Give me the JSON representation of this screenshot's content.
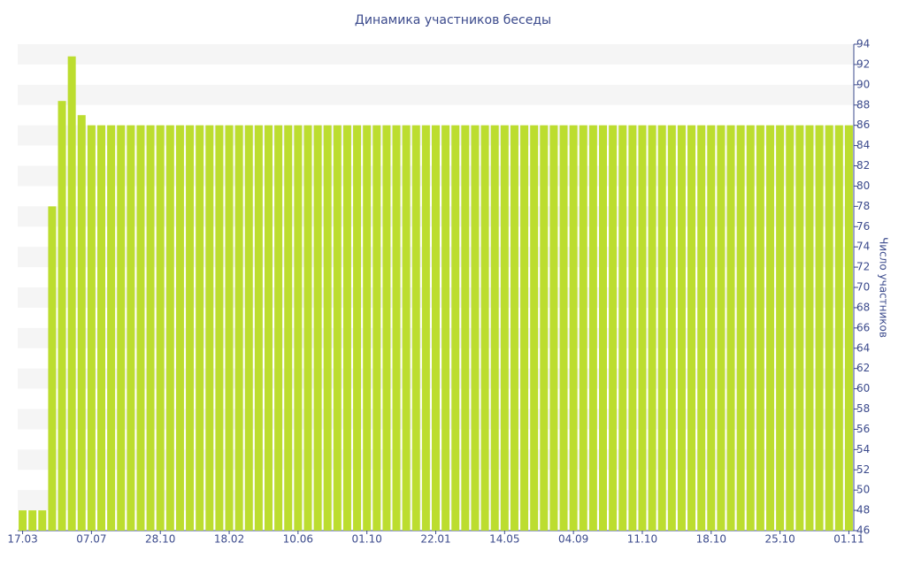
{
  "chart_data": {
    "type": "bar",
    "title": "Динамика участников беседы",
    "y_label": "Число участников",
    "categories": [
      "17.03",
      null,
      null,
      null,
      null,
      null,
      null,
      "07.07",
      null,
      null,
      null,
      null,
      null,
      null,
      "28.10",
      null,
      null,
      null,
      null,
      null,
      null,
      "18.02",
      null,
      null,
      null,
      null,
      null,
      null,
      "10.06",
      null,
      null,
      null,
      null,
      null,
      null,
      "01.10",
      null,
      null,
      null,
      null,
      null,
      null,
      "22.01",
      null,
      null,
      null,
      null,
      null,
      null,
      "14.05",
      null,
      null,
      null,
      null,
      null,
      null,
      "04.09",
      null,
      null,
      null,
      null,
      null,
      null,
      "11.10",
      null,
      null,
      null,
      null,
      null,
      null,
      "18.10",
      null,
      null,
      null,
      null,
      null,
      null,
      "25.10",
      null,
      null,
      null,
      null,
      null,
      null,
      "01.11"
    ],
    "values": [
      48,
      48,
      48,
      78,
      88.4,
      92.8,
      87,
      86,
      86,
      86,
      86,
      86,
      86,
      86,
      86,
      86,
      86,
      86,
      86,
      86,
      86,
      86,
      86,
      86,
      86,
      86,
      86,
      86,
      86,
      86,
      86,
      86,
      86,
      86,
      86,
      86,
      86,
      86,
      86,
      86,
      86,
      86,
      86,
      86,
      86,
      86,
      86,
      86,
      86,
      86,
      86,
      86,
      86,
      86,
      86,
      86,
      86,
      86,
      86,
      86,
      86,
      86,
      86,
      86,
      86,
      86,
      86,
      86,
      86,
      86,
      86,
      86,
      86,
      86,
      86,
      86,
      86,
      86,
      86,
      86,
      86,
      86,
      86,
      86,
      86
    ],
    "color": "#bcdd2f",
    "ylim": [
      46,
      94
    ],
    "yticks": [
      46,
      48,
      50,
      52,
      54,
      56,
      58,
      60,
      62,
      64,
      66,
      68,
      70,
      72,
      74,
      76,
      78,
      80,
      82,
      84,
      86,
      88,
      90,
      92,
      94
    ],
    "grid": true
  }
}
